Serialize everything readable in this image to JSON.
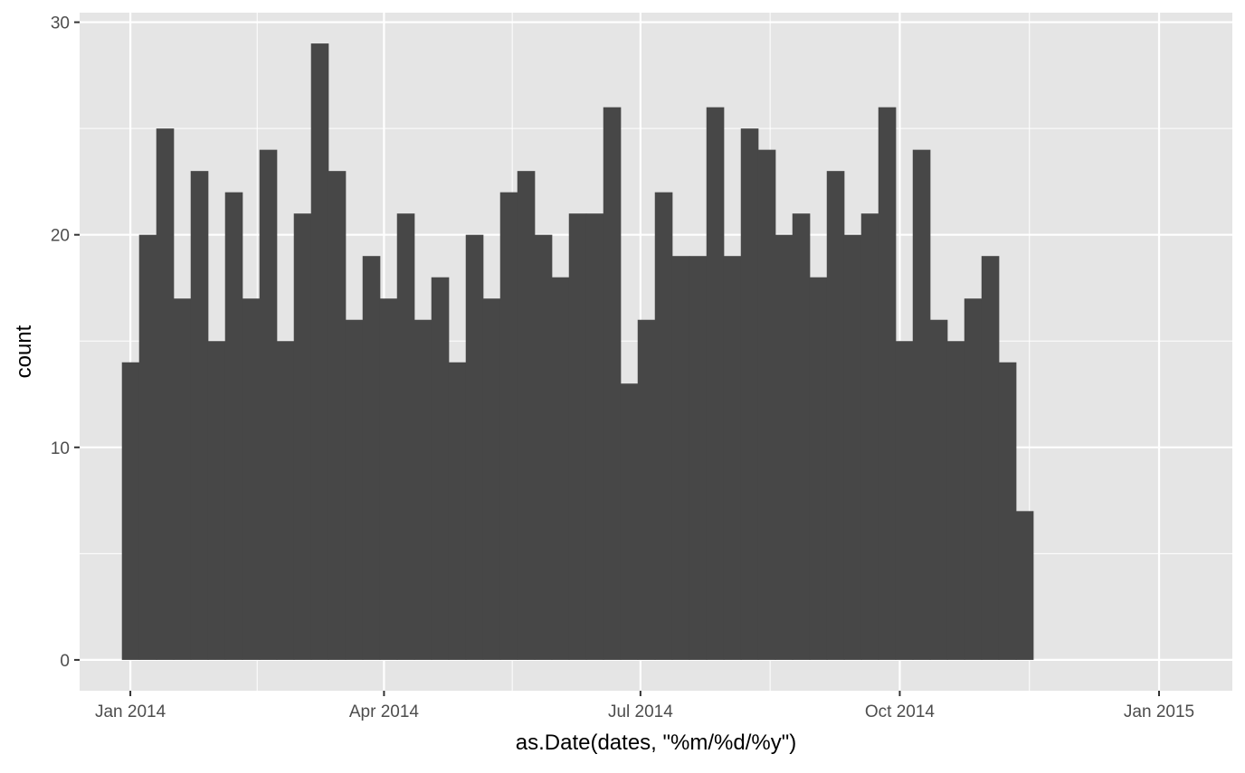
{
  "chart_data": {
    "type": "bar",
    "xlabel": "as.Date(dates, \"%m/%d/%y\")",
    "ylabel": "count",
    "x_tick_labels": [
      "Jan 2014",
      "Apr 2014",
      "Jul 2014",
      "Oct 2014",
      "Jan 2015"
    ],
    "x_tick_dates": [
      "2014-01-01",
      "2014-04-01",
      "2014-07-01",
      "2014-10-01",
      "2015-01-01"
    ],
    "y_tick_labels": [
      "0",
      "10",
      "20",
      "30"
    ],
    "y_ticks": [
      0,
      10,
      20,
      30
    ],
    "ylim": [
      -1.45,
      30.45
    ],
    "xlim": [
      "2013-12-14",
      "2015-01-27"
    ],
    "first_bin_start": "2013-12-29",
    "bin_width_days": 6.1,
    "values": [
      14,
      20,
      25,
      17,
      23,
      15,
      22,
      17,
      24,
      15,
      21,
      29,
      23,
      16,
      19,
      17,
      21,
      16,
      18,
      14,
      20,
      17,
      22,
      23,
      20,
      18,
      21,
      21,
      26,
      13,
      16,
      22,
      19,
      19,
      26,
      19,
      25,
      24,
      20,
      21,
      18,
      23,
      20,
      21,
      26,
      15,
      24,
      16,
      15,
      17,
      19,
      14,
      7
    ],
    "grid": true,
    "colors": {
      "panel_background": "#e5e5e5",
      "grid_major": "#ffffff",
      "bar_fill": "#474747",
      "tick_text": "#4d4d4d",
      "tick_mark": "#333333"
    }
  }
}
